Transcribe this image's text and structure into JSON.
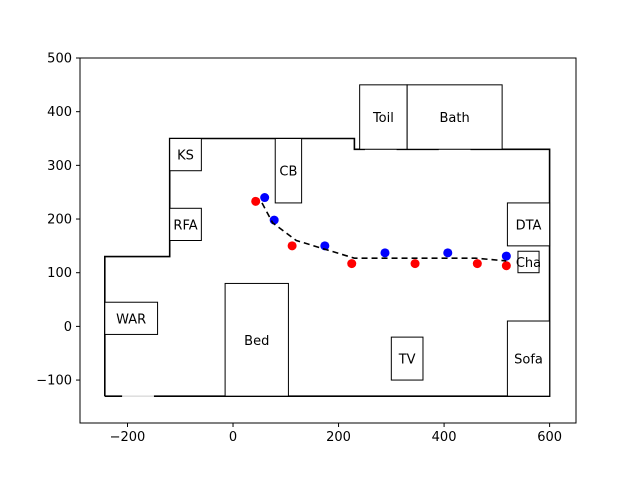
{
  "chart_data": {
    "type": "scatter",
    "xlim": [
      -290,
      650
    ],
    "ylim": [
      -180,
      500
    ],
    "x_ticks": [
      -200,
      0,
      200,
      400,
      600
    ],
    "y_ticks": [
      -100,
      0,
      100,
      200,
      300,
      400,
      500
    ],
    "x_tick_labels": [
      "−200",
      "0",
      "200",
      "400",
      "600"
    ],
    "y_tick_labels": [
      "−100",
      "0",
      "100",
      "200",
      "300",
      "400",
      "500"
    ],
    "grid": false,
    "wall_outline": [
      [
        -243,
        -130
      ],
      [
        -243,
        130
      ],
      [
        -120,
        130
      ],
      [
        -120,
        350
      ],
      [
        230,
        350
      ],
      [
        230,
        330
      ],
      [
        600,
        330
      ],
      [
        600,
        -130
      ],
      [
        -243,
        -130
      ]
    ],
    "wall_gaps": [
      {
        "from": [
          -210,
          -130
        ],
        "to": [
          -150,
          -130
        ]
      },
      {
        "from": [
          250,
          330
        ],
        "to": [
          310,
          330
        ]
      },
      {
        "from": [
          390,
          330
        ],
        "to": [
          450,
          330
        ]
      }
    ],
    "rooms": [
      {
        "label": "Toil",
        "x0": 240,
        "y0": 330,
        "x1": 330,
        "y1": 450
      },
      {
        "label": "Bath",
        "x0": 330,
        "y0": 330,
        "x1": 510,
        "y1": 450
      },
      {
        "label": "KS",
        "x0": -120,
        "y0": 290,
        "x1": -60,
        "y1": 350
      },
      {
        "label": "CB",
        "x0": 80,
        "y0": 230,
        "x1": 130,
        "y1": 350
      },
      {
        "label": "RFA",
        "x0": -120,
        "y0": 160,
        "x1": -60,
        "y1": 220
      },
      {
        "label": "DTA",
        "x0": 520,
        "y0": 150,
        "x1": 600,
        "y1": 230
      },
      {
        "label": "Cha",
        "x0": 540,
        "y0": 100,
        "x1": 580,
        "y1": 140
      },
      {
        "label": "WAR",
        "x0": -243,
        "y0": -15,
        "x1": -143,
        "y1": 45
      },
      {
        "label": "Bed",
        "x0": -15,
        "y0": -130,
        "x1": 105,
        "y1": 80
      },
      {
        "label": "TV",
        "x0": 300,
        "y0": -100,
        "x1": 360,
        "y1": -20
      },
      {
        "label": "Sofa",
        "x0": 520,
        "y0": -130,
        "x1": 600,
        "y1": 10
      }
    ],
    "series": [
      {
        "color": "#0000ff",
        "style": "points",
        "points": [
          [
            60,
            240
          ],
          [
            78,
            198
          ],
          [
            174,
            150
          ],
          [
            288,
            137
          ],
          [
            407,
            137
          ],
          [
            518,
            131
          ]
        ]
      },
      {
        "color": "#ff0000",
        "style": "points",
        "points": [
          [
            43,
            233
          ],
          [
            112,
            150
          ],
          [
            225,
            117
          ],
          [
            345,
            117
          ],
          [
            463,
            117
          ],
          [
            518,
            113
          ]
        ]
      },
      {
        "color": "#000000",
        "style": "dashed-line",
        "points": [
          [
            55,
            230
          ],
          [
            75,
            193
          ],
          [
            120,
            160
          ],
          [
            230,
            127
          ],
          [
            460,
            127
          ],
          [
            518,
            122
          ]
        ]
      }
    ]
  }
}
